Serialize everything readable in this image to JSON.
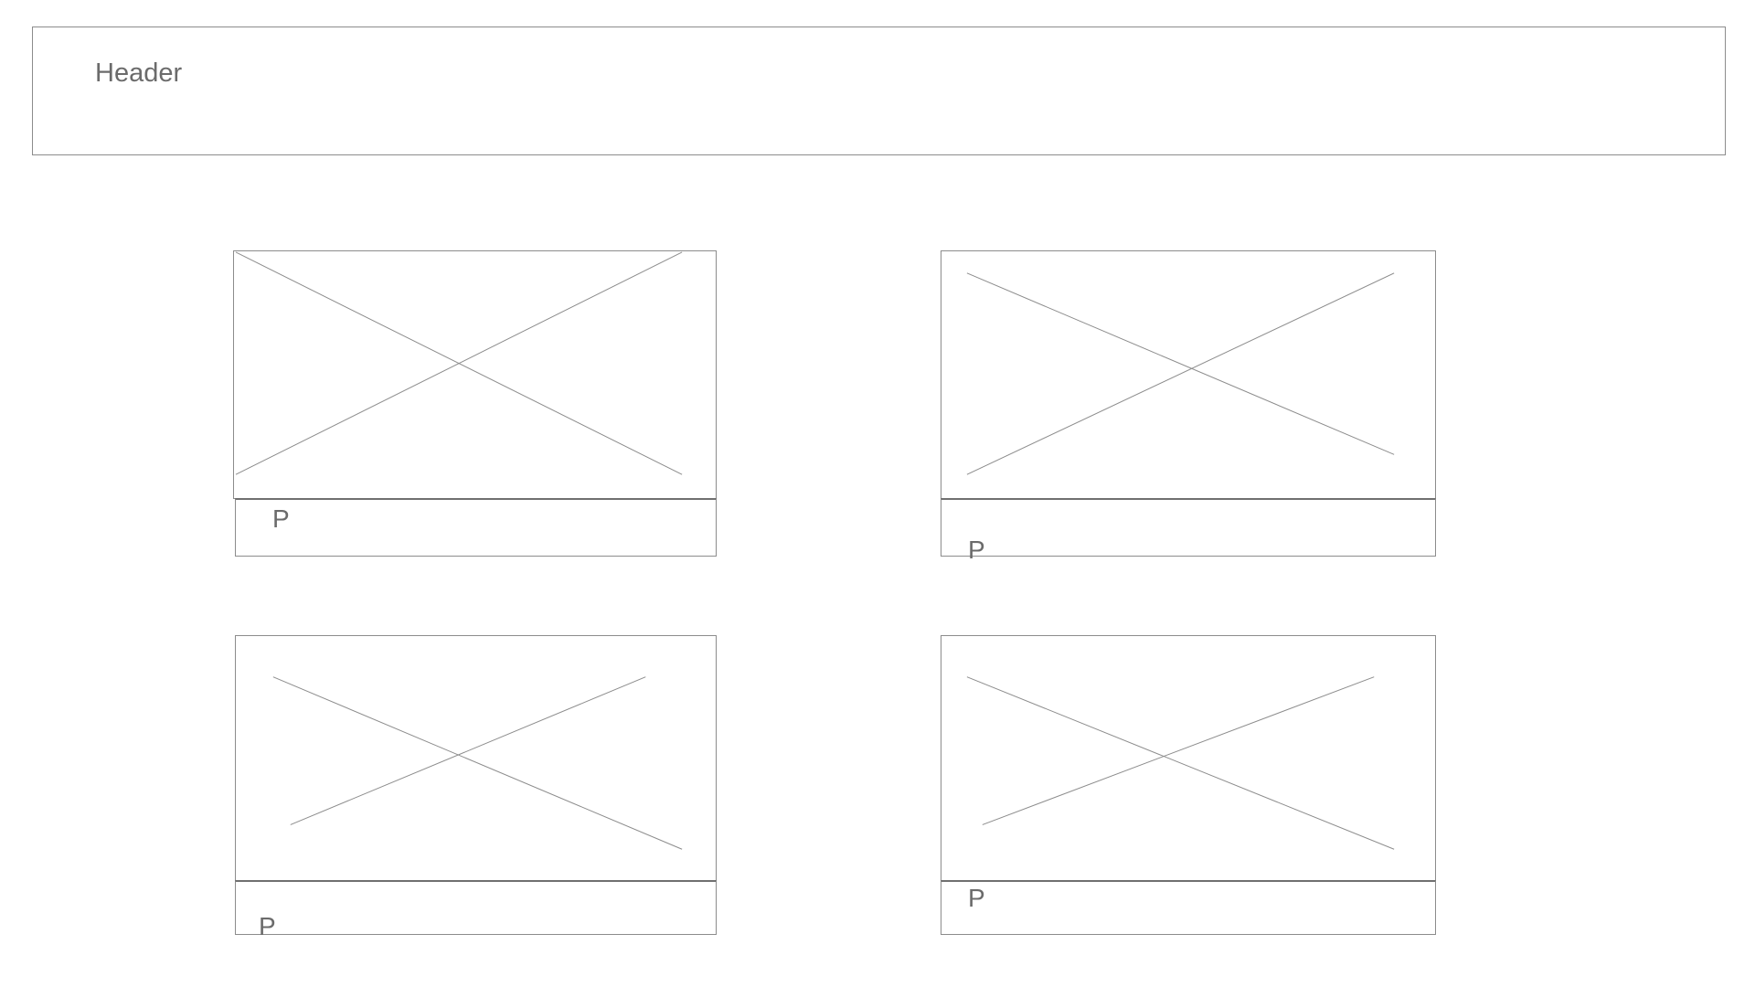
{
  "header": {
    "title": "Header"
  },
  "cards": [
    {
      "image_icon": "image-placeholder-icon",
      "caption": "P"
    },
    {
      "image_icon": "image-placeholder-icon",
      "caption": "P"
    },
    {
      "image_icon": "image-placeholder-icon",
      "caption": "P"
    },
    {
      "image_icon": "image-placeholder-icon",
      "caption": "P"
    }
  ],
  "colors": {
    "border": "#8c8c8c",
    "text": "#6b6b6b",
    "background": "#ffffff"
  }
}
